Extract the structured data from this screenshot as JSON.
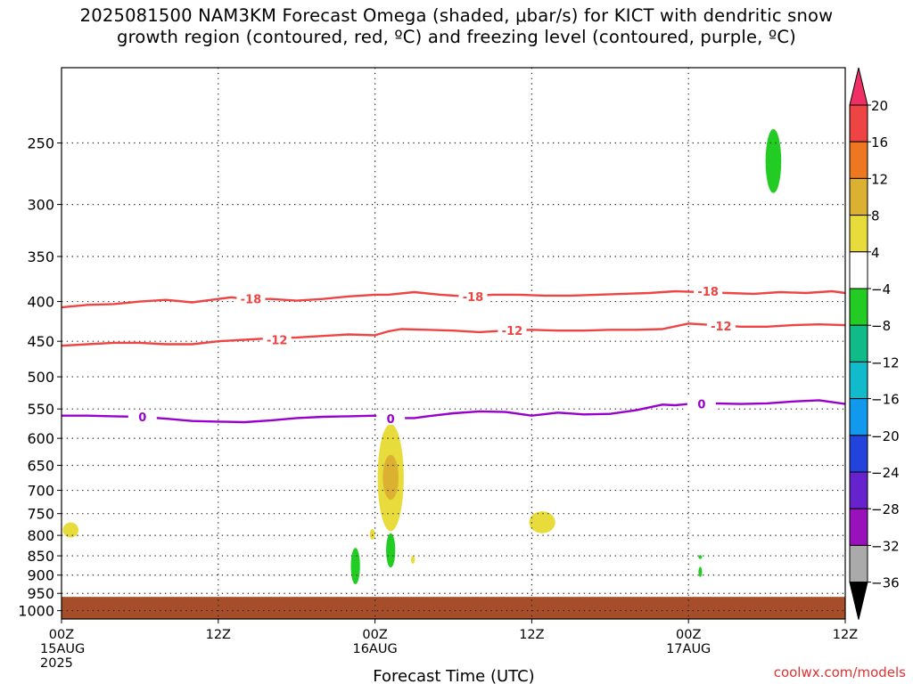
{
  "title": {
    "line1": "2025081500 NAM3KM Forecast Omega (shaded, μbar/s) for KICT with dendritic snow",
    "line2": "growth region (contoured, red, ºC) and freezing level (contoured, purple, ºC)"
  },
  "credit": "coolwx.com/models",
  "chart_data": {
    "type": "contour",
    "xlabel": "Forecast Time (UTC)",
    "ylabel": "",
    "xlim_hours": [
      0,
      60
    ],
    "ylim_hPa": [
      200,
      1025
    ],
    "y_scale": "log",
    "grid": true,
    "x_ticks": [
      {
        "hour": 0,
        "lines": [
          "00Z",
          "15AUG",
          "2025"
        ]
      },
      {
        "hour": 12,
        "lines": [
          "12Z"
        ]
      },
      {
        "hour": 24,
        "lines": [
          "00Z",
          "16AUG"
        ]
      },
      {
        "hour": 36,
        "lines": [
          "12Z"
        ]
      },
      {
        "hour": 48,
        "lines": [
          "00Z",
          "17AUG"
        ]
      },
      {
        "hour": 60,
        "lines": [
          "12Z"
        ]
      }
    ],
    "y_ticks": [
      250,
      300,
      350,
      400,
      450,
      500,
      550,
      600,
      650,
      700,
      750,
      800,
      850,
      900,
      950,
      1000
    ],
    "contours": [
      {
        "level": -18,
        "color": "#ee4444",
        "label": "-18",
        "x": [
          0,
          2,
          4,
          6,
          8,
          10,
          12,
          13,
          14,
          16,
          18,
          20,
          22,
          24,
          25,
          27,
          29,
          31,
          33,
          35,
          37,
          39,
          41,
          43,
          45,
          47,
          49,
          51,
          53,
          55,
          57,
          59,
          60
        ],
        "p": [
          407,
          404,
          403,
          400,
          398,
          401,
          397,
          395,
          397,
          397,
          399,
          397,
          394,
          392,
          392,
          389,
          392,
          394,
          392,
          392,
          393,
          393,
          392,
          391,
          390,
          388,
          389,
          390,
          391,
          389,
          390,
          388,
          390
        ],
        "label_at": [
          [
            14.5,
            397
          ],
          [
            31.5,
            394
          ],
          [
            49.5,
            388
          ]
        ]
      },
      {
        "level": -12,
        "color": "#ee4444",
        "label": "-12",
        "x": [
          0,
          2,
          4,
          6,
          8,
          10,
          12,
          14,
          16,
          18,
          20,
          22,
          24,
          25,
          26,
          28,
          30,
          32,
          34,
          36,
          38,
          40,
          42,
          44,
          46,
          48,
          50,
          52,
          54,
          56,
          58,
          60
        ],
        "p": [
          456,
          454,
          452,
          452,
          454,
          454,
          450,
          448,
          446,
          445,
          443,
          441,
          442,
          437,
          434,
          435,
          436,
          438,
          436,
          435,
          436,
          436,
          435,
          435,
          434,
          427,
          429,
          431,
          431,
          429,
          428,
          429
        ],
        "label_at": [
          [
            16.5,
            448
          ],
          [
            34.5,
            436
          ],
          [
            50.5,
            430
          ]
        ]
      },
      {
        "level": 0,
        "color": "#9900cc",
        "label": "0",
        "x": [
          0,
          2,
          4,
          6,
          8,
          10,
          12,
          14,
          16,
          18,
          20,
          22,
          24,
          25,
          26,
          27,
          28,
          30,
          32,
          34,
          36,
          38,
          40,
          42,
          44,
          46,
          47,
          48,
          50,
          52,
          54,
          56,
          58,
          60
        ],
        "p": [
          561,
          561,
          562,
          563,
          566,
          570,
          571,
          572,
          569,
          565,
          563,
          562,
          561,
          566,
          565,
          565,
          562,
          557,
          554,
          555,
          561,
          556,
          559,
          558,
          552,
          543,
          544,
          542,
          541,
          542,
          541,
          538,
          536,
          542
        ],
        "label_at": [
          [
            6.2,
            563
          ],
          [
            25.2,
            566
          ],
          [
            49.0,
            542
          ]
        ]
      }
    ],
    "shaded": [
      {
        "category": "4",
        "color": "#e8dc3c",
        "center": [
          0.7,
          785
        ],
        "half_width_h": 0.6,
        "p_range": [
          770,
          805
        ]
      },
      {
        "category": "4",
        "color": "#e8dc3c",
        "center": [
          25.2,
          660
        ],
        "half_width_h": 1.0,
        "p_range": [
          575,
          790
        ]
      },
      {
        "category": "8",
        "color": "#dcb030",
        "center": [
          25.2,
          670
        ],
        "half_width_h": 0.6,
        "p_range": [
          630,
          720
        ]
      },
      {
        "category": "4",
        "color": "#e8dc3c",
        "center": [
          23.8,
          795
        ],
        "half_width_h": 0.2,
        "p_range": [
          785,
          810
        ]
      },
      {
        "category": "4",
        "color": "#e8dc3c",
        "center": [
          26.9,
          860
        ],
        "half_width_h": 0.15,
        "p_range": [
          850,
          870
        ]
      },
      {
        "category": "4",
        "color": "#e8dc3c",
        "center": [
          36.8,
          768
        ],
        "half_width_h": 1.0,
        "p_range": [
          745,
          795
        ]
      },
      {
        "category": "-4",
        "color": "#22cc22",
        "center": [
          22.5,
          875
        ],
        "half_width_h": 0.35,
        "p_range": [
          830,
          925
        ]
      },
      {
        "category": "-4",
        "color": "#22cc22",
        "center": [
          25.2,
          840
        ],
        "half_width_h": 0.35,
        "p_range": [
          795,
          880
        ]
      },
      {
        "category": "-4",
        "color": "#22cc22",
        "center": [
          54.5,
          262
        ],
        "half_width_h": 0.6,
        "p_range": [
          240,
          290
        ]
      },
      {
        "category": "-4",
        "color": "#22cc22",
        "center": [
          48.9,
          890
        ],
        "half_width_h": 0.12,
        "p_range": [
          878,
          905
        ]
      },
      {
        "category": "-4",
        "color": "#22cc22",
        "center": [
          48.9,
          853
        ],
        "half_width_h": 0.08,
        "p_range": [
          848,
          858
        ]
      }
    ],
    "ground": {
      "color": "#a64d2a",
      "p_top": 960
    },
    "colorbar": {
      "labels": [
        "20",
        "16",
        "12",
        "8",
        "4",
        "-4",
        "-8",
        "-12",
        "-16",
        "-20",
        "-24",
        "-28",
        "-32",
        "-36"
      ],
      "colors": [
        "#f03064",
        "#ee4444",
        "#ee7722",
        "#dcb030",
        "#e8dc3c",
        "#ffffff",
        "#22cc22",
        "#11bb88",
        "#11bbcc",
        "#1199ee",
        "#2244dd",
        "#6622cc",
        "#9911bb",
        "#aaaaaa",
        "#000000"
      ]
    }
  }
}
